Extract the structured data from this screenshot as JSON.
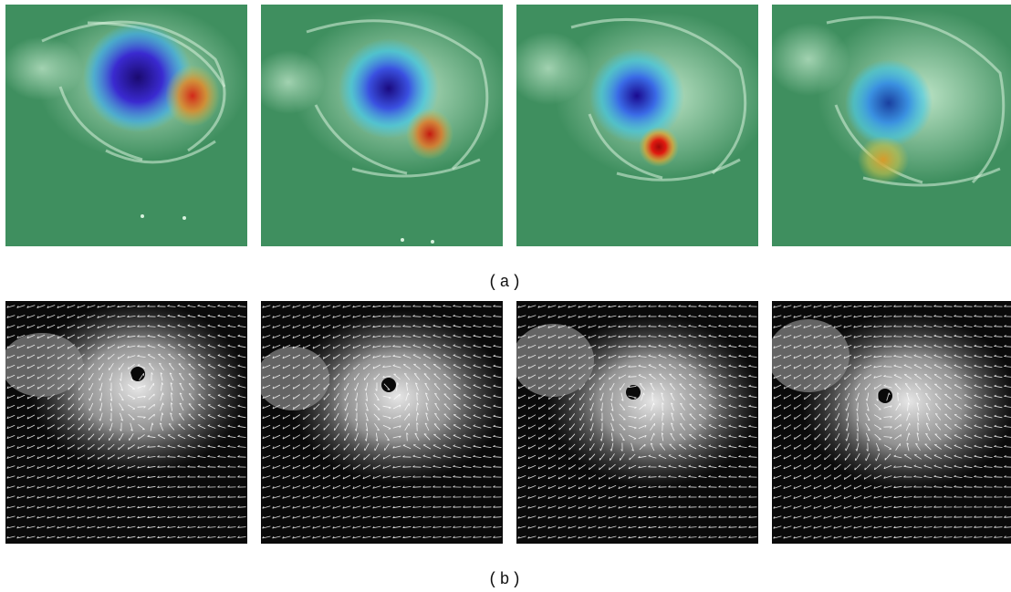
{
  "figure": {
    "captions": {
      "a": "(a)",
      "b": "(b)"
    },
    "rows": [
      {
        "id": "a",
        "description_kind": "heatmap-overlay",
        "colors": {
          "background": "#3f8f5f",
          "cloud": "#bfe6c8",
          "low": "#2a1aa8",
          "mid": "#3fc6e6",
          "high": "#c41a10"
        },
        "panels": [
          {
            "index": 1
          },
          {
            "index": 2
          },
          {
            "index": 3
          },
          {
            "index": 4
          }
        ]
      },
      {
        "id": "b",
        "description_kind": "vector-field",
        "colors": {
          "background": "#0a0a0a",
          "cloud": "#9a9a9a",
          "arrow": "#ffffff"
        },
        "panels": [
          {
            "index": 1
          },
          {
            "index": 2
          },
          {
            "index": 3
          },
          {
            "index": 4
          }
        ]
      }
    ]
  }
}
